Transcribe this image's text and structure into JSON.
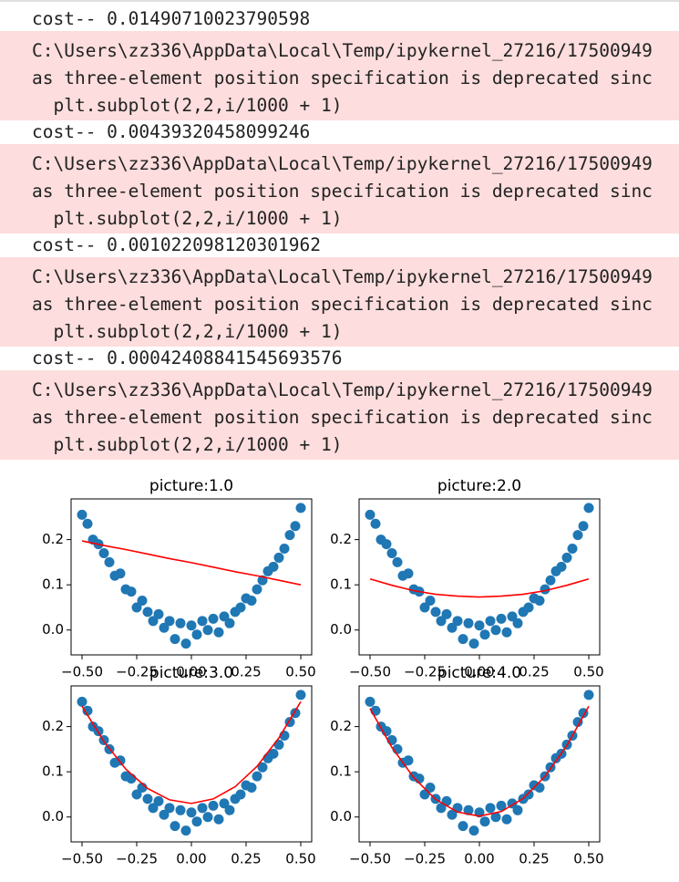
{
  "outputs": [
    {
      "stream": "stdout",
      "lines": [
        "cost-- 0.01490710023790598"
      ]
    },
    {
      "stream": "stderr",
      "lines": [
        "C:\\Users\\zz336\\AppData\\Local\\Temp/ipykernel_27216/17500949",
        "as three-element position specification is deprecated sinc",
        "  plt.subplot(2,2,i/1000 + 1)"
      ]
    },
    {
      "stream": "stdout",
      "lines": [
        "cost-- 0.00439320458099246"
      ]
    },
    {
      "stream": "stderr",
      "lines": [
        "C:\\Users\\zz336\\AppData\\Local\\Temp/ipykernel_27216/17500949",
        "as three-element position specification is deprecated sinc",
        "  plt.subplot(2,2,i/1000 + 1)"
      ]
    },
    {
      "stream": "stdout",
      "lines": [
        "cost-- 0.001022098120301962"
      ]
    },
    {
      "stream": "stderr",
      "lines": [
        "C:\\Users\\zz336\\AppData\\Local\\Temp/ipykernel_27216/17500949",
        "as three-element position specification is deprecated sinc",
        "  plt.subplot(2,2,i/1000 + 1)"
      ]
    },
    {
      "stream": "stdout",
      "lines": [
        "cost-- 0.00042408841545693576"
      ]
    },
    {
      "stream": "stderr",
      "lines": [
        "C:\\Users\\zz336\\AppData\\Local\\Temp/ipykernel_27216/17500949",
        "as three-element position specification is deprecated sinc",
        "  plt.subplot(2,2,i/1000 + 1)"
      ]
    }
  ],
  "chart_data": [
    {
      "type": "scatter",
      "title": "picture:1.0",
      "xlim": [
        -0.55,
        0.55
      ],
      "ylim": [
        -0.055,
        0.29
      ],
      "xticks": [
        {
          "value": -0.5,
          "label": "−0.50"
        },
        {
          "value": -0.25,
          "label": "−0.25"
        },
        {
          "value": 0,
          "label": "0.00"
        },
        {
          "value": 0.25,
          "label": "0.25"
        },
        {
          "value": 0.5,
          "label": "0.50"
        }
      ],
      "yticks": [
        {
          "value": 0,
          "label": "0.0"
        },
        0.1,
        0.2
      ],
      "series": [
        {
          "type": "scatter",
          "color": "#1f77b4",
          "x": [
            -0.5,
            -0.475,
            -0.45,
            -0.425,
            -0.4,
            -0.375,
            -0.35,
            -0.325,
            -0.3,
            -0.275,
            -0.25,
            -0.225,
            -0.2,
            -0.175,
            -0.15,
            -0.125,
            -0.1,
            -0.075,
            -0.05,
            -0.025,
            0,
            0.025,
            0.05,
            0.075,
            0.1,
            0.125,
            0.15,
            0.175,
            0.2,
            0.225,
            0.25,
            0.275,
            0.3,
            0.325,
            0.35,
            0.375,
            0.4,
            0.425,
            0.45,
            0.475,
            0.5
          ],
          "y": [
            0.255,
            0.235,
            0.2,
            0.19,
            0.17,
            0.15,
            0.12,
            0.125,
            0.09,
            0.085,
            0.05,
            0.065,
            0.04,
            0.02,
            0.035,
            0.005,
            0.02,
            -0.02,
            0.015,
            -0.03,
            0.01,
            -0.01,
            0.02,
            0.0,
            0.025,
            -0.005,
            0.03,
            0.015,
            0.04,
            0.05,
            0.07,
            0.065,
            0.09,
            0.11,
            0.13,
            0.14,
            0.16,
            0.18,
            0.21,
            0.23,
            0.27
          ]
        },
        {
          "type": "line",
          "color": "#ff0000",
          "x": [
            -0.5,
            -0.4,
            -0.3,
            -0.2,
            -0.1,
            0,
            0.1,
            0.2,
            0.3,
            0.4,
            0.5
          ],
          "y": [
            0.197,
            0.187,
            0.178,
            0.168,
            0.158,
            0.149,
            0.139,
            0.129,
            0.12,
            0.11,
            0.1
          ]
        }
      ]
    },
    {
      "type": "scatter",
      "title": "picture:2.0",
      "xlim": [
        -0.55,
        0.55
      ],
      "ylim": [
        -0.055,
        0.29
      ],
      "xticks": [
        {
          "value": -0.5,
          "label": "−0.50"
        },
        {
          "value": -0.25,
          "label": "−0.25"
        },
        {
          "value": 0,
          "label": "0.00"
        },
        {
          "value": 0.25,
          "label": "0.25"
        },
        {
          "value": 0.5,
          "label": "0.50"
        }
      ],
      "yticks": [
        {
          "value": 0,
          "label": "0.0"
        },
        0.1,
        0.2
      ],
      "series": [
        {
          "type": "scatter",
          "color": "#1f77b4",
          "x": [
            -0.5,
            -0.475,
            -0.45,
            -0.425,
            -0.4,
            -0.375,
            -0.35,
            -0.325,
            -0.3,
            -0.275,
            -0.25,
            -0.225,
            -0.2,
            -0.175,
            -0.15,
            -0.125,
            -0.1,
            -0.075,
            -0.05,
            -0.025,
            0,
            0.025,
            0.05,
            0.075,
            0.1,
            0.125,
            0.15,
            0.175,
            0.2,
            0.225,
            0.25,
            0.275,
            0.3,
            0.325,
            0.35,
            0.375,
            0.4,
            0.425,
            0.45,
            0.475,
            0.5
          ],
          "y": [
            0.255,
            0.235,
            0.2,
            0.19,
            0.17,
            0.15,
            0.12,
            0.125,
            0.09,
            0.085,
            0.05,
            0.065,
            0.04,
            0.02,
            0.035,
            0.005,
            0.02,
            -0.02,
            0.015,
            -0.03,
            0.01,
            -0.01,
            0.02,
            0.0,
            0.025,
            -0.005,
            0.03,
            0.015,
            0.04,
            0.05,
            0.07,
            0.065,
            0.09,
            0.11,
            0.13,
            0.14,
            0.16,
            0.18,
            0.21,
            0.23,
            0.27
          ]
        },
        {
          "type": "line",
          "color": "#ff0000",
          "x": [
            -0.5,
            -0.4,
            -0.3,
            -0.2,
            -0.1,
            0,
            0.1,
            0.2,
            0.3,
            0.4,
            0.5
          ],
          "y": [
            0.113,
            0.099,
            0.087,
            0.079,
            0.075,
            0.073,
            0.075,
            0.079,
            0.087,
            0.099,
            0.113
          ]
        }
      ]
    },
    {
      "type": "scatter",
      "title": "picture:3.0",
      "xlim": [
        -0.55,
        0.55
      ],
      "ylim": [
        -0.055,
        0.29
      ],
      "xticks": [
        {
          "value": -0.5,
          "label": "−0.50"
        },
        {
          "value": -0.25,
          "label": "−0.25"
        },
        {
          "value": 0,
          "label": "0.00"
        },
        {
          "value": 0.25,
          "label": "0.25"
        },
        {
          "value": 0.5,
          "label": "0.50"
        }
      ],
      "yticks": [
        {
          "value": 0,
          "label": "0.0"
        },
        0.1,
        0.2
      ],
      "series": [
        {
          "type": "scatter",
          "color": "#1f77b4",
          "x": [
            -0.5,
            -0.475,
            -0.45,
            -0.425,
            -0.4,
            -0.375,
            -0.35,
            -0.325,
            -0.3,
            -0.275,
            -0.25,
            -0.225,
            -0.2,
            -0.175,
            -0.15,
            -0.125,
            -0.1,
            -0.075,
            -0.05,
            -0.025,
            0,
            0.025,
            0.05,
            0.075,
            0.1,
            0.125,
            0.15,
            0.175,
            0.2,
            0.225,
            0.25,
            0.275,
            0.3,
            0.325,
            0.35,
            0.375,
            0.4,
            0.425,
            0.45,
            0.475,
            0.5
          ],
          "y": [
            0.255,
            0.235,
            0.2,
            0.19,
            0.17,
            0.15,
            0.12,
            0.125,
            0.09,
            0.085,
            0.05,
            0.065,
            0.04,
            0.02,
            0.035,
            0.005,
            0.02,
            -0.02,
            0.015,
            -0.03,
            0.01,
            -0.01,
            0.02,
            0.0,
            0.025,
            -0.005,
            0.03,
            0.015,
            0.04,
            0.05,
            0.07,
            0.065,
            0.09,
            0.11,
            0.13,
            0.14,
            0.16,
            0.18,
            0.21,
            0.23,
            0.27
          ]
        },
        {
          "type": "line",
          "color": "#ff0000",
          "x": [
            -0.5,
            -0.4,
            -0.3,
            -0.2,
            -0.1,
            0,
            0.1,
            0.2,
            0.3,
            0.4,
            0.5
          ],
          "y": [
            0.245,
            0.167,
            0.106,
            0.063,
            0.038,
            0.03,
            0.04,
            0.067,
            0.112,
            0.175,
            0.255
          ]
        }
      ]
    },
    {
      "type": "scatter",
      "title": "picture:4.0",
      "xlim": [
        -0.55,
        0.55
      ],
      "ylim": [
        -0.055,
        0.29
      ],
      "xticks": [
        {
          "value": -0.5,
          "label": "−0.50"
        },
        {
          "value": -0.25,
          "label": "−0.25"
        },
        {
          "value": 0,
          "label": "0.00"
        },
        {
          "value": 0.25,
          "label": "0.25"
        },
        {
          "value": 0.5,
          "label": "0.50"
        }
      ],
      "yticks": [
        {
          "value": 0,
          "label": "0.0"
        },
        0.1,
        0.2
      ],
      "series": [
        {
          "type": "scatter",
          "color": "#1f77b4",
          "x": [
            -0.5,
            -0.475,
            -0.45,
            -0.425,
            -0.4,
            -0.375,
            -0.35,
            -0.325,
            -0.3,
            -0.275,
            -0.25,
            -0.225,
            -0.2,
            -0.175,
            -0.15,
            -0.125,
            -0.1,
            -0.075,
            -0.05,
            -0.025,
            0,
            0.025,
            0.05,
            0.075,
            0.1,
            0.125,
            0.15,
            0.175,
            0.2,
            0.225,
            0.25,
            0.275,
            0.3,
            0.325,
            0.35,
            0.375,
            0.4,
            0.425,
            0.45,
            0.475,
            0.5
          ],
          "y": [
            0.255,
            0.235,
            0.2,
            0.19,
            0.17,
            0.15,
            0.12,
            0.125,
            0.09,
            0.085,
            0.05,
            0.065,
            0.04,
            0.02,
            0.035,
            0.005,
            0.02,
            -0.02,
            0.015,
            -0.03,
            0.01,
            -0.01,
            0.02,
            0.0,
            0.025,
            -0.005,
            0.03,
            0.015,
            0.04,
            0.05,
            0.07,
            0.065,
            0.09,
            0.11,
            0.13,
            0.14,
            0.16,
            0.18,
            0.21,
            0.23,
            0.27
          ]
        },
        {
          "type": "line",
          "color": "#ff0000",
          "x": [
            -0.5,
            -0.4,
            -0.3,
            -0.2,
            -0.1,
            0,
            0.1,
            0.2,
            0.3,
            0.4,
            0.5
          ],
          "y": [
            0.24,
            0.154,
            0.087,
            0.039,
            0.011,
            0.002,
            0.012,
            0.041,
            0.09,
            0.158,
            0.245
          ]
        }
      ]
    }
  ]
}
